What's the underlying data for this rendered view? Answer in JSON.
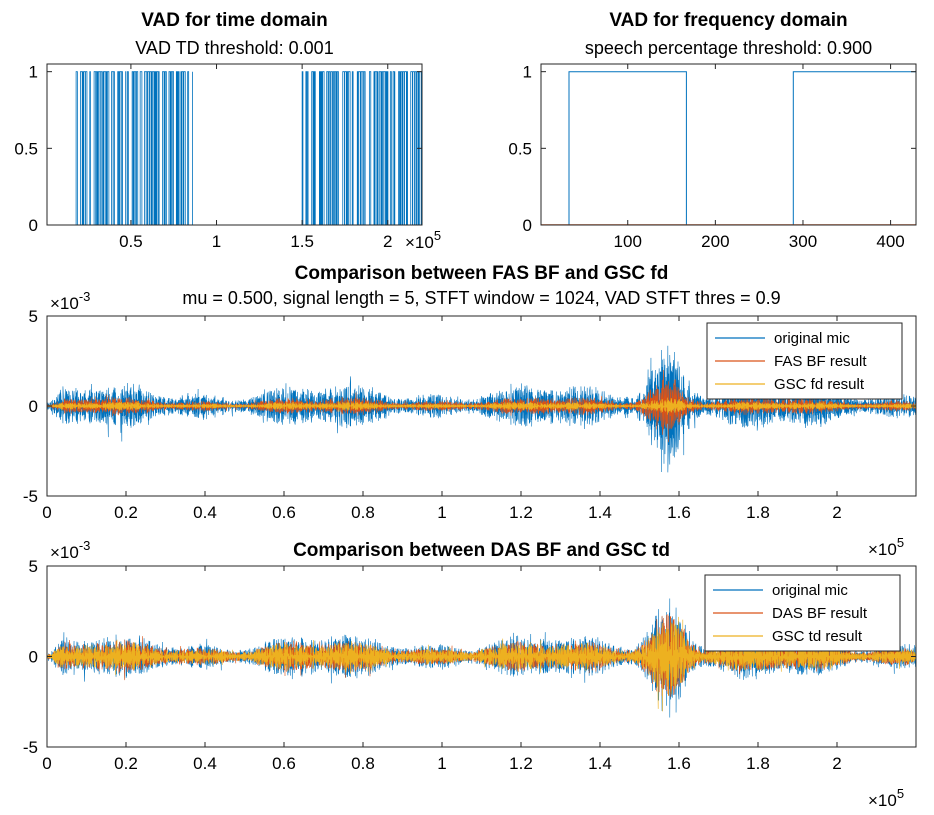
{
  "colors": {
    "blue": "#0072BD",
    "orange": "#D95319",
    "yellow": "#EDB120",
    "axis": "#262626",
    "background": "#ffffff"
  },
  "chart_data": [
    {
      "id": "vad-td",
      "type": "line",
      "title": "VAD for time domain",
      "subtitle": "VAD TD threshold: 0.001",
      "xlim": [
        1000,
        220000
      ],
      "ylim": [
        0,
        1.05
      ],
      "x_ticks": [
        0.5,
        1,
        1.5,
        2
      ],
      "x_tick_labels": [
        "0.5",
        "1",
        "1.5",
        "2"
      ],
      "x_exponent": "×10^5",
      "y_ticks": [
        0,
        0.5,
        1
      ],
      "y_tick_labels": [
        "0",
        "0.5",
        "1"
      ],
      "series": [
        {
          "color": "blue",
          "style": "binary-dense",
          "active_regions": [
            [
              18000,
              86000
            ],
            [
              150000,
              220000
            ]
          ]
        }
      ]
    },
    {
      "id": "vad-fd",
      "type": "line",
      "title": "VAD for frequency domain",
      "subtitle": "speech percentage threshold: 0.900",
      "xlim": [
        1,
        429
      ],
      "ylim": [
        0,
        1.05
      ],
      "x_ticks": [
        100,
        200,
        300,
        400
      ],
      "x_tick_labels": [
        "100",
        "200",
        "300",
        "400"
      ],
      "y_ticks": [
        0,
        0.5,
        1
      ],
      "y_tick_labels": [
        "0",
        "0.5",
        "1"
      ],
      "series": [
        {
          "color": "blue",
          "style": "step",
          "points": [
            [
              1,
              0
            ],
            [
              33,
              0
            ],
            [
              33,
              1
            ],
            [
              167,
              1
            ],
            [
              167,
              0
            ],
            [
              289,
              0
            ],
            [
              289,
              1
            ],
            [
              429,
              1
            ]
          ]
        },
        {
          "color": "orange",
          "style": "step",
          "points": [
            [
              1,
              0
            ],
            [
              429,
              0
            ]
          ]
        }
      ]
    },
    {
      "id": "fas-gsc",
      "type": "line",
      "title": "Comparison between FAS BF and GSC fd",
      "subtitle": "mu = 0.500, signal length = 5, STFT window = 1024, VAD STFT thres = 0.9",
      "xlim": [
        0,
        220000
      ],
      "ylim": [
        -5,
        5
      ],
      "x_ticks": [
        0,
        0.2,
        0.4,
        0.6,
        0.8,
        1,
        1.2,
        1.4,
        1.6,
        1.8,
        2
      ],
      "x_tick_labels": [
        "0",
        "0.2",
        "0.4",
        "0.6",
        "0.8",
        "1",
        "1.2",
        "1.4",
        "1.6",
        "1.8",
        "2"
      ],
      "x_exponent": "×10^5",
      "y_ticks": [
        -5,
        0,
        5
      ],
      "y_tick_labels": [
        "-5",
        "0",
        "5"
      ],
      "y_exponent": "×10^-3",
      "legend": [
        "original mic",
        "FAS BF result",
        "GSC fd result"
      ],
      "legend_position": "top-right",
      "series": [
        {
          "name": "original mic",
          "color": "blue",
          "amplitude": 1.3,
          "burst_amplitude": 4.0
        },
        {
          "name": "FAS BF result",
          "color": "orange",
          "amplitude": 0.55,
          "burst_amplitude": 1.8
        },
        {
          "name": "GSC fd result",
          "color": "yellow",
          "amplitude": 0.25,
          "burst_amplitude": 0.6
        }
      ]
    },
    {
      "id": "das-gsc",
      "type": "line",
      "title": "Comparison between DAS BF and GSC td",
      "xlim": [
        0,
        220000
      ],
      "ylim": [
        -5,
        5
      ],
      "x_ticks": [
        0,
        0.2,
        0.4,
        0.6,
        0.8,
        1,
        1.2,
        1.4,
        1.6,
        1.8,
        2
      ],
      "x_tick_labels": [
        "0",
        "0.2",
        "0.4",
        "0.6",
        "0.8",
        "1",
        "1.2",
        "1.4",
        "1.6",
        "1.8",
        "2"
      ],
      "x_exponent": "×10^5",
      "y_ticks": [
        -5,
        0,
        5
      ],
      "y_tick_labels": [
        "-5",
        "0",
        "5"
      ],
      "y_exponent": "×10^-3",
      "legend": [
        "original mic",
        "DAS BF result",
        "GSC td result"
      ],
      "legend_position": "top-right",
      "series": [
        {
          "name": "original mic",
          "color": "blue",
          "amplitude": 1.3,
          "burst_amplitude": 4.0
        },
        {
          "name": "DAS BF result",
          "color": "orange",
          "amplitude": 0.95,
          "burst_amplitude": 3.0
        },
        {
          "name": "GSC td result",
          "color": "yellow",
          "amplitude": 0.85,
          "burst_amplitude": 2.6
        }
      ]
    }
  ]
}
